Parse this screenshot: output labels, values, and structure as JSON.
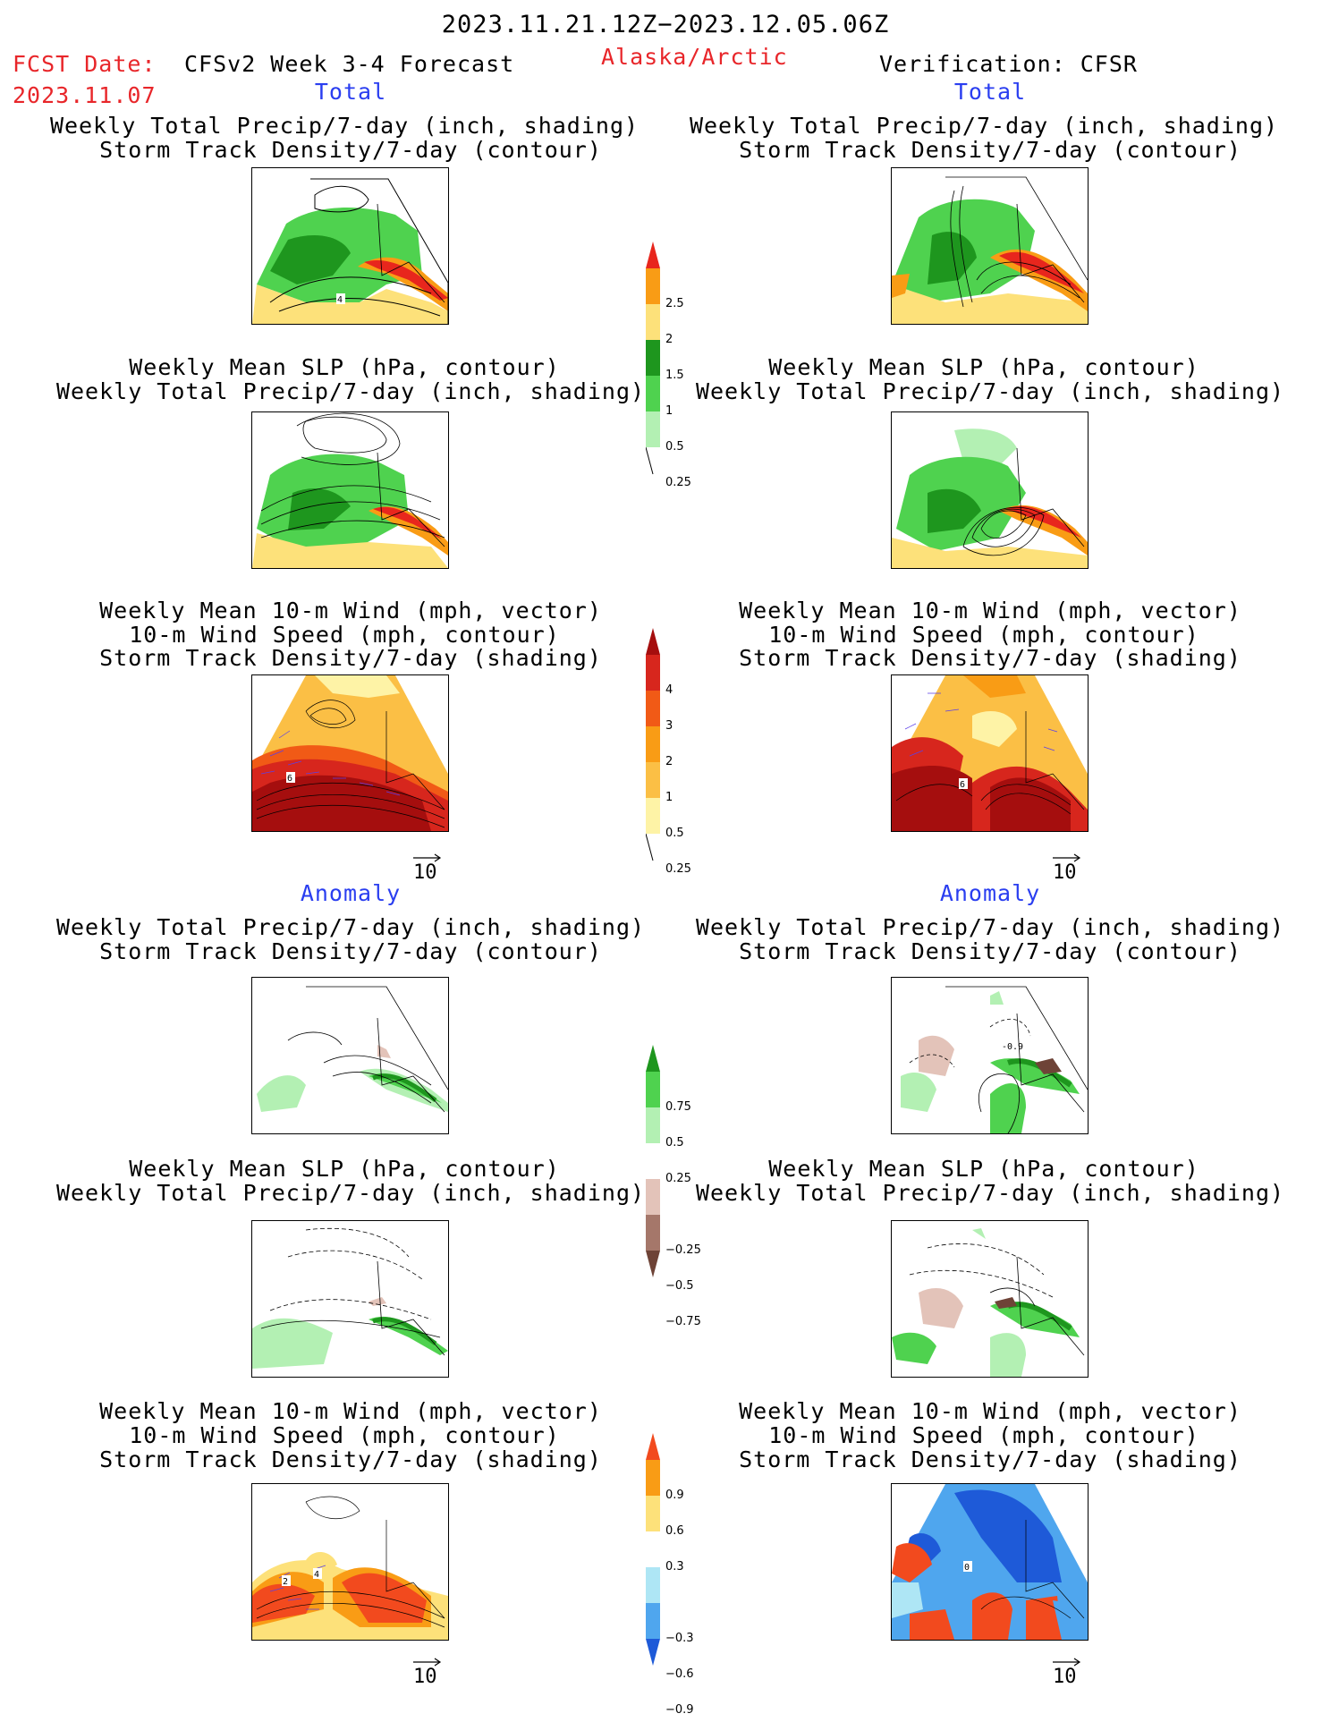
{
  "header": {
    "date_range": "2023.11.21.12Z−2023.12.05.06Z",
    "fcst_label": "FCST Date:",
    "fcst_date": "2023.11.07",
    "product": "CFSv2 Week 3-4 Forecast",
    "region": "Alaska/Arctic",
    "verification": "Verification: CFSR"
  },
  "sections": {
    "total": "Total",
    "anomaly": "Anomaly"
  },
  "panel_titles": {
    "precip_storm": [
      "Weekly Total Precip/7-day (inch, shading)",
      "Storm Track Density/7-day (contour)"
    ],
    "slp_precip": [
      "Weekly Mean SLP (hPa, contour)",
      "Weekly Total Precip/7-day (inch, shading)"
    ],
    "wind_storm": [
      "Weekly Mean 10-m Wind (mph, vector)",
      "10-m Wind Speed (mph, contour)",
      "Storm Track Density/7-day (shading)"
    ]
  },
  "map_labels": {
    "l_total_precip": "4",
    "l_total_wind": "6",
    "r_total_wind": "6",
    "r_anom_precip": "-0.9",
    "l_anom_wind_a": "2",
    "l_anom_wind_b": "4",
    "r_anom_wind": "0"
  },
  "vector_reference": "10",
  "colorbars": {
    "precip_total": {
      "labels": [
        "2.5",
        "2",
        "1.5",
        "1",
        "0.5",
        "0.25"
      ],
      "colors": [
        "#e8261d",
        "#f99c15",
        "#fde17a",
        "#1e961e",
        "#4fd24f",
        "#b3f0b3"
      ]
    },
    "storm_total": {
      "labels": [
        "4",
        "3",
        "2",
        "1",
        "0.5",
        "0.25"
      ],
      "colors": [
        "#a50e0e",
        "#d7261d",
        "#f15a16",
        "#f99c15",
        "#fbbf45",
        "#fef3a6"
      ]
    },
    "precip_anom": {
      "labels": [
        "0.75",
        "0.5",
        "0.25",
        "−0.25",
        "−0.5",
        "−0.75"
      ],
      "colors": [
        "#1e961e",
        "#4fd24f",
        "#b3f0b3",
        "#ffffff",
        "#e3c3b9",
        "#a5776a",
        "#6e4337"
      ]
    },
    "storm_anom": {
      "labels": [
        "0.9",
        "0.6",
        "0.3",
        "−0.3",
        "−0.6",
        "−0.9"
      ],
      "colors": [
        "#f24a1e",
        "#f99c15",
        "#fde17a",
        "#ffffff",
        "#aee6f5",
        "#4fa6ee",
        "#1e5ad8"
      ]
    }
  }
}
